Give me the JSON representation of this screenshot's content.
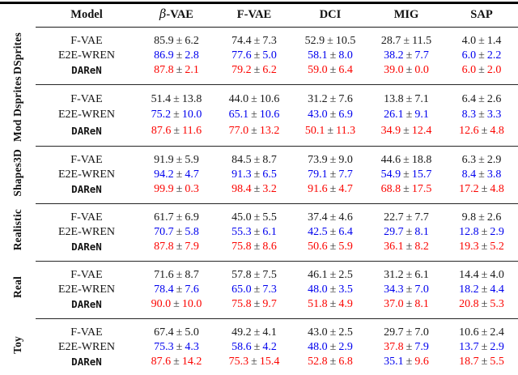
{
  "table": {
    "columns": [
      "Model",
      "β-VAE",
      "F-VAE",
      "DCI",
      "MIG",
      "SAP"
    ],
    "plus_minus": "±",
    "colors": {
      "black": "#1a1a1a",
      "blue": "#0000ee",
      "red": "#fb0400",
      "pm": "#303030"
    },
    "groups": [
      {
        "label": "DSprites",
        "rows": [
          {
            "model": "F-VAE",
            "color": "black",
            "mono": false,
            "cells": [
              {
                "m": "85.9",
                "s": "6.2"
              },
              {
                "m": "74.4",
                "s": "7.3"
              },
              {
                "m": "52.9",
                "s": "10.5"
              },
              {
                "m": "28.7",
                "s": "11.5"
              },
              {
                "m": "4.0",
                "s": "1.4"
              }
            ]
          },
          {
            "model": "E2E-WREN",
            "color": "blue",
            "mono": false,
            "cells": [
              {
                "m": "86.9",
                "s": "2.8"
              },
              {
                "m": "77.6",
                "s": "5.0"
              },
              {
                "m": "58.1",
                "s": "8.0"
              },
              {
                "m": "38.2",
                "s": "7.7"
              },
              {
                "m": "6.0",
                "s": "2.2"
              }
            ]
          },
          {
            "model": "DAReN",
            "color": "red",
            "mono": true,
            "cells": [
              {
                "m": "87.8",
                "s": "2.1"
              },
              {
                "m": "79.2",
                "s": "6.2"
              },
              {
                "m": "59.0",
                "s": "6.4"
              },
              {
                "m": "39.0",
                "s": "0.0"
              },
              {
                "m": "6.0",
                "s": "2.0"
              }
            ]
          }
        ]
      },
      {
        "label": "Mod Dsprites",
        "rows": [
          {
            "model": "F-VAE",
            "color": "black",
            "mono": false,
            "cells": [
              {
                "m": "51.4",
                "s": "13.8"
              },
              {
                "m": "44.0",
                "s": "10.6"
              },
              {
                "m": "31.2",
                "s": "7.6"
              },
              {
                "m": "13.8",
                "s": "7.1"
              },
              {
                "m": "6.4",
                "s": "2.6"
              }
            ]
          },
          {
            "model": "E2E-WREN",
            "color": "blue",
            "mono": false,
            "cells": [
              {
                "m": "75.2",
                "s": "10.0"
              },
              {
                "m": "65.1",
                "s": "10.6"
              },
              {
                "m": "43.0",
                "s": "6.9"
              },
              {
                "m": "26.1",
                "s": "9.1"
              },
              {
                "m": "8.3",
                "s": "3.3"
              }
            ]
          },
          {
            "model": "DAReN",
            "color": "red",
            "mono": true,
            "cells": [
              {
                "m": "87.6",
                "s": "11.6"
              },
              {
                "m": "77.0",
                "s": "13.2"
              },
              {
                "m": "50.1",
                "s": "11.3"
              },
              {
                "m": "34.9",
                "s": "12.4"
              },
              {
                "m": "12.6",
                "s": "4.8"
              }
            ]
          }
        ]
      },
      {
        "label": "Shapes3D",
        "rows": [
          {
            "model": "F-VAE",
            "color": "black",
            "mono": false,
            "cells": [
              {
                "m": "91.9",
                "s": "5.9"
              },
              {
                "m": "84.5",
                "s": "8.7"
              },
              {
                "m": "73.9",
                "s": "9.0"
              },
              {
                "m": "44.6",
                "s": "18.8"
              },
              {
                "m": "6.3",
                "s": "2.9"
              }
            ]
          },
          {
            "model": "E2E-WREN",
            "color": "blue",
            "mono": false,
            "cells": [
              {
                "m": "94.2",
                "s": "4.7"
              },
              {
                "m": "91.3",
                "s": "6.5"
              },
              {
                "m": "79.1",
                "s": "7.7"
              },
              {
                "m": "54.9",
                "s": "15.7"
              },
              {
                "m": "8.4",
                "s": "3.8"
              }
            ]
          },
          {
            "model": "DAReN",
            "color": "red",
            "mono": true,
            "cells": [
              {
                "m": "99.9",
                "s": "0.3"
              },
              {
                "m": "98.4",
                "s": "3.2"
              },
              {
                "m": "91.6",
                "s": "4.7"
              },
              {
                "m": "68.8",
                "s": "17.5"
              },
              {
                "m": "17.2",
                "s": "4.8"
              }
            ]
          }
        ]
      },
      {
        "label": "Realistic",
        "rows": [
          {
            "model": "F-VAE",
            "color": "black",
            "mono": false,
            "cells": [
              {
                "m": "61.7",
                "s": "6.9"
              },
              {
                "m": "45.0",
                "s": "5.5"
              },
              {
                "m": "37.4",
                "s": "4.6"
              },
              {
                "m": "22.7",
                "s": "7.7"
              },
              {
                "m": "9.8",
                "s": "2.6"
              }
            ]
          },
          {
            "model": "E2E-WREN",
            "color": "blue",
            "mono": false,
            "cells": [
              {
                "m": "70.7",
                "s": "5.8"
              },
              {
                "m": "55.3",
                "s": "6.1"
              },
              {
                "m": "42.5",
                "s": "6.4"
              },
              {
                "m": "29.7",
                "s": "8.1"
              },
              {
                "m": "12.8",
                "s": "2.9"
              }
            ]
          },
          {
            "model": "DAReN",
            "color": "red",
            "mono": true,
            "cells": [
              {
                "m": "87.8",
                "s": "7.9"
              },
              {
                "m": "75.8",
                "s": "8.6"
              },
              {
                "m": "50.6",
                "s": "5.9"
              },
              {
                "m": "36.1",
                "s": "8.2"
              },
              {
                "m": "19.3",
                "s": "5.2"
              }
            ]
          }
        ]
      },
      {
        "label": "Real",
        "rows": [
          {
            "model": "F-VAE",
            "color": "black",
            "mono": false,
            "cells": [
              {
                "m": "71.6",
                "s": "8.7"
              },
              {
                "m": "57.8",
                "s": "7.5"
              },
              {
                "m": "46.1",
                "s": "2.5"
              },
              {
                "m": "31.2",
                "s": "6.1"
              },
              {
                "m": "14.4",
                "s": "4.0"
              }
            ]
          },
          {
            "model": "E2E-WREN",
            "color": "blue",
            "mono": false,
            "cells": [
              {
                "m": "78.4",
                "s": "7.6"
              },
              {
                "m": "65.0",
                "s": "7.3"
              },
              {
                "m": "48.0",
                "s": "3.5"
              },
              {
                "m": "34.3",
                "s": "7.0"
              },
              {
                "m": "18.2",
                "s": "4.4"
              }
            ]
          },
          {
            "model": "DAReN",
            "color": "red",
            "mono": true,
            "cells": [
              {
                "m": "90.0",
                "s": "10.0"
              },
              {
                "m": "75.8",
                "s": "9.7"
              },
              {
                "m": "51.8",
                "s": "4.9"
              },
              {
                "m": "37.0",
                "s": "8.1"
              },
              {
                "m": "20.8",
                "s": "5.3"
              }
            ]
          }
        ]
      },
      {
        "label": "Toy",
        "rows": [
          {
            "model": "F-VAE",
            "color": "black",
            "mono": false,
            "cells": [
              {
                "m": "67.4",
                "s": "5.0"
              },
              {
                "m": "49.2",
                "s": "4.1"
              },
              {
                "m": "43.0",
                "s": "2.5"
              },
              {
                "m": "29.7",
                "s": "7.0"
              },
              {
                "m": "10.6",
                "s": "2.4"
              }
            ]
          },
          {
            "model": "E2E-WREN",
            "color": "blue",
            "mono": false,
            "cells": [
              {
                "m": "75.3",
                "s": "4.3"
              },
              {
                "m": "58.6",
                "s": "4.2"
              },
              {
                "m": "48.0",
                "s": "2.9"
              },
              {
                "m": "37.8",
                "s": "7.9",
                "mc": "red",
                "sc": "blue"
              },
              {
                "m": "13.7",
                "s": "2.9"
              }
            ]
          },
          {
            "model": "DAReN",
            "color": "red",
            "mono": true,
            "cells": [
              {
                "m": "87.6",
                "s": "14.2"
              },
              {
                "m": "75.3",
                "s": "15.4"
              },
              {
                "m": "52.8",
                "s": "6.8"
              },
              {
                "m": "35.1",
                "s": "9.6",
                "mc": "blue",
                "sc": "red"
              },
              {
                "m": "18.7",
                "s": "5.5"
              }
            ]
          }
        ]
      }
    ]
  }
}
